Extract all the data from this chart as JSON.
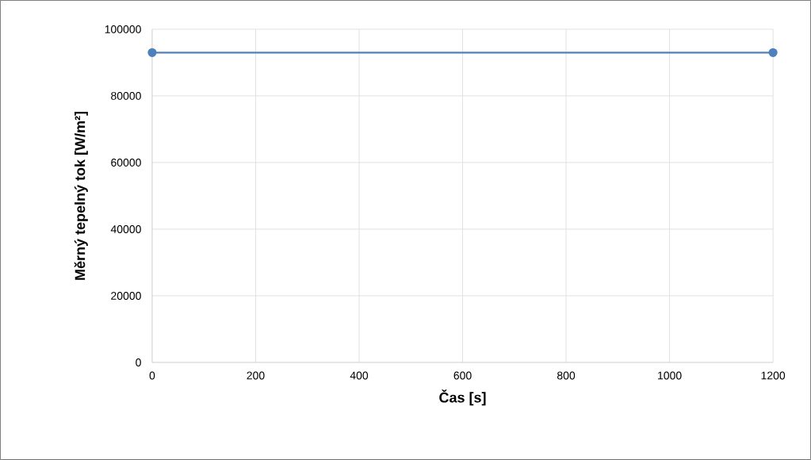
{
  "chart_data": {
    "type": "line",
    "xlabel": "Čas [s]",
    "ylabel": "Měrný tepelný tok [W/m²]",
    "x": [
      0,
      1200
    ],
    "series": [
      {
        "color": "#4f81bd",
        "values": [
          93000,
          93000
        ]
      }
    ],
    "xlim": [
      0,
      1200
    ],
    "xticks": [
      0,
      200,
      400,
      600,
      800,
      1000,
      1200
    ],
    "ylim": [
      0,
      100000
    ],
    "yticks": [
      0,
      20000,
      40000,
      60000,
      80000,
      100000
    ],
    "grid": true,
    "marker": "circle",
    "line_style": "solid"
  }
}
